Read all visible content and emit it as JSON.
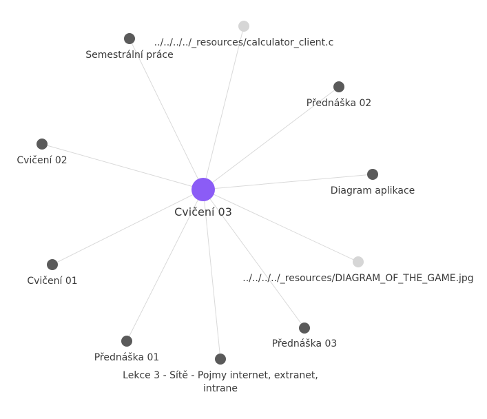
{
  "graph": {
    "colors": {
      "center_node": "#8b5cf6",
      "note_node": "#5a5a5a",
      "attachment_node": "#d6d6d6",
      "edge": "#d9d9d9",
      "label": "#3a3a3a"
    },
    "center": {
      "label": "Cvičení 03",
      "kind": "center"
    },
    "nodes": [
      {
        "id": "resources-calculator",
        "label": "../../../../_resources/calculator_client.c",
        "kind": "attachment"
      },
      {
        "id": "semestralni-prace",
        "label": "Semestrální práce",
        "kind": "note"
      },
      {
        "id": "prednaska-02",
        "label": "Přednáška 02",
        "kind": "note"
      },
      {
        "id": "cviceni-02",
        "label": "Cvičení 02",
        "kind": "note"
      },
      {
        "id": "diagram-aplikace",
        "label": "Diagram aplikace",
        "kind": "note"
      },
      {
        "id": "cviceni-01",
        "label": "Cvičení 01",
        "kind": "note"
      },
      {
        "id": "resources-diagram-game",
        "label": "../../../../_resources/DIAGRAM_OF_THE_GAME.jpg",
        "kind": "attachment"
      },
      {
        "id": "prednaska-03",
        "label": "Přednáška 03",
        "kind": "note"
      },
      {
        "id": "prednaska-01",
        "label": "Přednáška 01",
        "kind": "note"
      },
      {
        "id": "lekce-3-site",
        "label_lines": [
          "Lekce 3 - Sítě - Pojmy internet, extranet,",
          "intrane"
        ],
        "kind": "note"
      }
    ]
  }
}
